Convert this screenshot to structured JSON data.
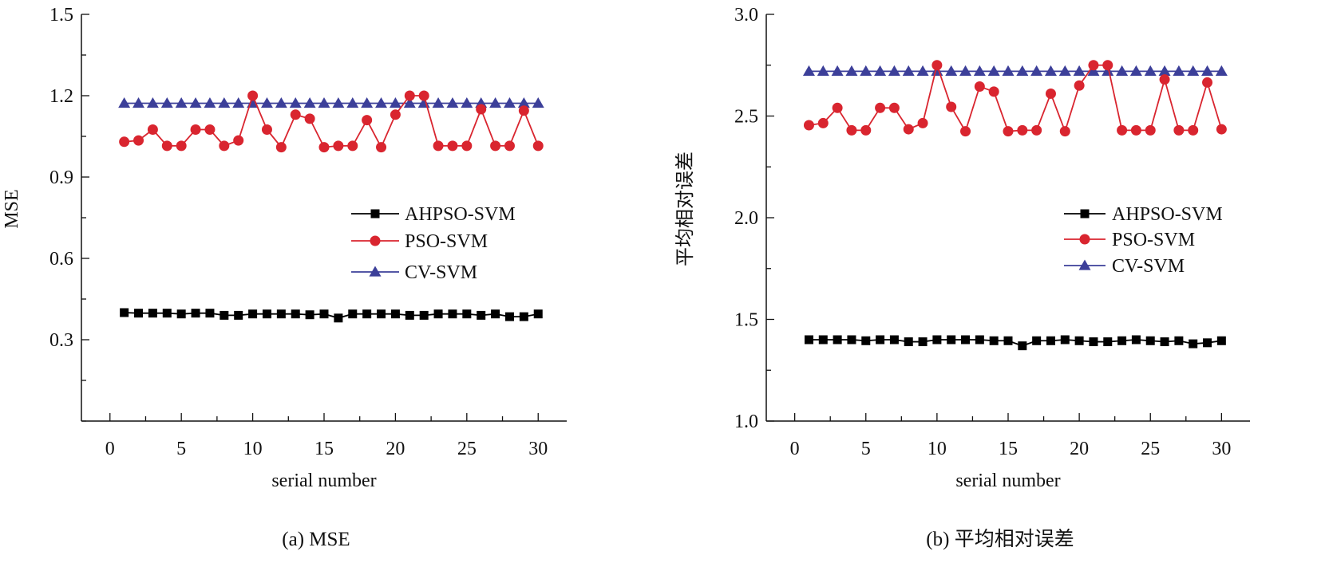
{
  "chart_data": [
    {
      "type": "line",
      "caption": "(a)  MSE",
      "xlabel": "serial number",
      "ylabel": "MSE",
      "xlim": [
        -2,
        32
      ],
      "ylim": [
        0.0,
        1.5
      ],
      "xticks": [
        0,
        5,
        10,
        15,
        20,
        25,
        30
      ],
      "yticks": [
        0.3,
        0.6,
        0.9,
        1.2,
        1.5
      ],
      "ytick_labels": [
        "0.3",
        "0.6",
        "0.9",
        "1.2",
        "1.5"
      ],
      "grid": false,
      "legend_position": "right-middle",
      "x": [
        1,
        2,
        3,
        4,
        5,
        6,
        7,
        8,
        9,
        10,
        11,
        12,
        13,
        14,
        15,
        16,
        17,
        18,
        19,
        20,
        21,
        22,
        23,
        24,
        25,
        26,
        27,
        28,
        29,
        30
      ],
      "series": [
        {
          "name": "AHPSO-SVM",
          "color": "#000000",
          "marker": "square",
          "values": [
            0.4,
            0.398,
            0.398,
            0.398,
            0.395,
            0.398,
            0.398,
            0.39,
            0.39,
            0.395,
            0.395,
            0.395,
            0.395,
            0.392,
            0.395,
            0.38,
            0.395,
            0.395,
            0.395,
            0.395,
            0.39,
            0.39,
            0.395,
            0.395,
            0.395,
            0.39,
            0.395,
            0.385,
            0.385,
            0.395
          ]
        },
        {
          "name": "PSO-SVM",
          "color": "#d9252f",
          "marker": "circle",
          "values": [
            1.03,
            1.035,
            1.075,
            1.015,
            1.015,
            1.075,
            1.075,
            1.015,
            1.035,
            1.2,
            1.075,
            1.01,
            1.13,
            1.115,
            1.01,
            1.015,
            1.015,
            1.11,
            1.01,
            1.13,
            1.2,
            1.2,
            1.015,
            1.015,
            1.015,
            1.15,
            1.015,
            1.015,
            1.145,
            1.015
          ]
        },
        {
          "name": "CV-SVM",
          "color": "#3c3f99",
          "marker": "triangle",
          "values": [
            1.172,
            1.172,
            1.172,
            1.172,
            1.172,
            1.172,
            1.172,
            1.172,
            1.172,
            1.172,
            1.172,
            1.172,
            1.172,
            1.172,
            1.172,
            1.172,
            1.172,
            1.172,
            1.172,
            1.172,
            1.172,
            1.172,
            1.172,
            1.172,
            1.172,
            1.172,
            1.172,
            1.172,
            1.172,
            1.172
          ]
        }
      ]
    },
    {
      "type": "line",
      "caption": "(b)  平均相对误差",
      "xlabel": "serial number",
      "ylabel": "平均相对误差",
      "xlim": [
        -2,
        32
      ],
      "ylim": [
        1.0,
        3.0
      ],
      "xticks": [
        0,
        5,
        10,
        15,
        20,
        25,
        30
      ],
      "yticks": [
        1.0,
        1.5,
        2.0,
        2.5,
        3.0
      ],
      "ytick_labels": [
        "1.0",
        "1.5",
        "2.0",
        "2.5",
        "3.0"
      ],
      "grid": false,
      "legend_position": "right-middle",
      "x": [
        1,
        2,
        3,
        4,
        5,
        6,
        7,
        8,
        9,
        10,
        11,
        12,
        13,
        14,
        15,
        16,
        17,
        18,
        19,
        20,
        21,
        22,
        23,
        24,
        25,
        26,
        27,
        28,
        29,
        30
      ],
      "series": [
        {
          "name": "AHPSO-SVM",
          "color": "#000000",
          "marker": "square",
          "values": [
            1.4,
            1.4,
            1.4,
            1.4,
            1.395,
            1.4,
            1.4,
            1.39,
            1.39,
            1.4,
            1.4,
            1.4,
            1.4,
            1.395,
            1.395,
            1.37,
            1.395,
            1.395,
            1.4,
            1.395,
            1.39,
            1.39,
            1.395,
            1.4,
            1.395,
            1.39,
            1.395,
            1.38,
            1.385,
            1.395
          ]
        },
        {
          "name": "PSO-SVM",
          "color": "#d9252f",
          "marker": "circle",
          "values": [
            2.455,
            2.465,
            2.54,
            2.43,
            2.43,
            2.54,
            2.54,
            2.435,
            2.465,
            2.75,
            2.545,
            2.425,
            2.645,
            2.62,
            2.425,
            2.43,
            2.43,
            2.61,
            2.425,
            2.65,
            2.75,
            2.75,
            2.43,
            2.43,
            2.43,
            2.68,
            2.43,
            2.43,
            2.665,
            2.435
          ]
        },
        {
          "name": "CV-SVM",
          "color": "#3c3f99",
          "marker": "triangle",
          "values": [
            2.72,
            2.72,
            2.72,
            2.72,
            2.72,
            2.72,
            2.72,
            2.72,
            2.72,
            2.72,
            2.72,
            2.72,
            2.72,
            2.72,
            2.72,
            2.72,
            2.72,
            2.72,
            2.72,
            2.72,
            2.72,
            2.72,
            2.72,
            2.72,
            2.72,
            2.72,
            2.72,
            2.72,
            2.72,
            2.72
          ]
        }
      ]
    }
  ]
}
